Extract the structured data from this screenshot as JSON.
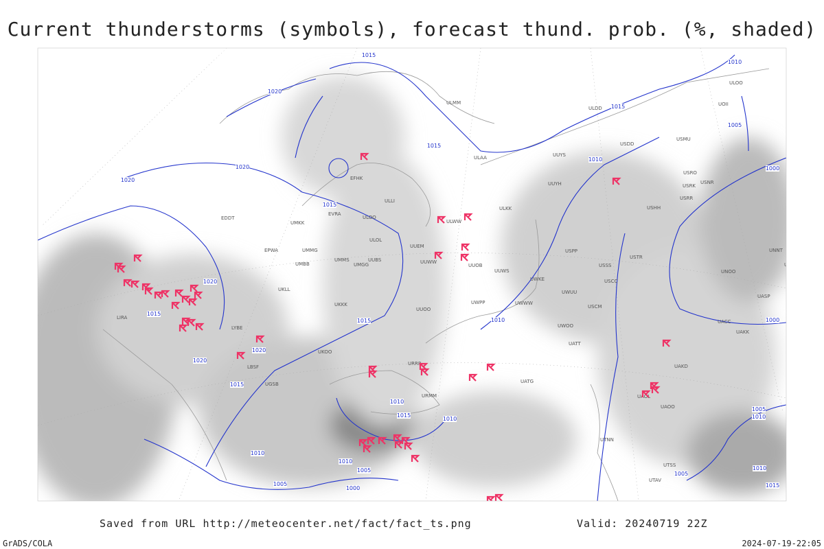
{
  "title": "Current thunderstorms (symbols), forecast thund. prob. (%, shaded)",
  "footer": {
    "source": "Saved from URL http://meteocenter.net/fact/fact_ts.png",
    "valid": "Valid: 20240719 22Z",
    "software": "GrADS/COLA",
    "timestamp": "2024-07-19-22:05"
  },
  "isobar_labels": [
    "1015",
    "1020",
    "1010",
    "1015",
    "1005",
    "1015",
    "1010",
    "1020",
    "1000",
    "1020",
    "1015",
    "1020",
    "1015",
    "1015",
    "1010",
    "1000",
    "1020",
    "1020",
    "1015",
    "1010",
    "1015",
    "1010",
    "1010",
    "1010",
    "1005",
    "1005",
    "1000",
    "1005",
    "1010",
    "1005",
    "1015",
    "1010"
  ],
  "station_labels": [
    "ULMM",
    "ULOO",
    "UOII",
    "ULDD",
    "USDD",
    "USMU",
    "EFHK",
    "ULAA",
    "UUYS",
    "ULLI",
    "EVRA",
    "ULOO",
    "UUYH",
    "ULKK",
    "USRO",
    "USNR",
    "USRK",
    "USRR",
    "USHH",
    "EDDT",
    "ULOL",
    "UMKK",
    "ULWW",
    "EPWA",
    "UMMG",
    "UUEM",
    "UMMS",
    "UMGG",
    "UUBS",
    "UUWW",
    "UUWS",
    "USPP",
    "USSS",
    "UMBB",
    "UKLL",
    "UUOB",
    "UKKK",
    "UWPP",
    "UWKE",
    "USCC",
    "UWWW",
    "UWUU",
    "USTR",
    "UNOO",
    "UNBB",
    "UNNT",
    "LIRA",
    "LYBE",
    "UKOO",
    "UUOO",
    "UWOO",
    "USCM",
    "UATT",
    "UACC",
    "UAKK",
    "UASP",
    "UAKD",
    "URRR",
    "UATG",
    "UAOL",
    "UAOO",
    "LBSF",
    "UGSB",
    "URMM",
    "UTNN",
    "UTSS",
    "UTAV"
  ]
}
